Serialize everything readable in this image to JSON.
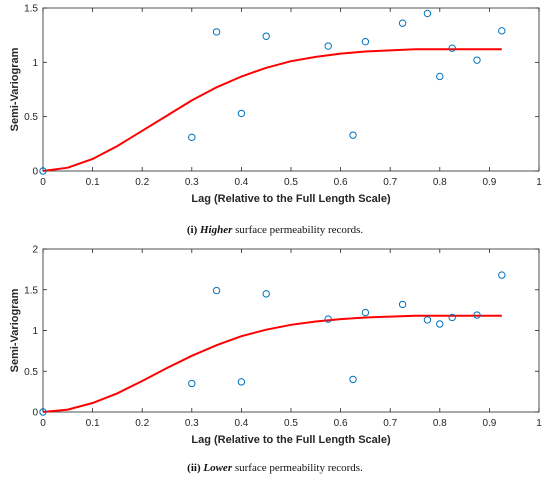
{
  "chart_data": [
    {
      "type": "scatter",
      "xlabel": "Lag (Relative to the Full Length Scale)",
      "ylabel": "Semi-Variogram",
      "xlim": [
        0,
        1
      ],
      "ylim": [
        0,
        1.5
      ],
      "xticks": [
        "0",
        "0.1",
        "0.2",
        "0.3",
        "0.4",
        "0.5",
        "0.6",
        "0.7",
        "0.8",
        "0.9",
        "1"
      ],
      "yticks": [
        "0",
        "0.5",
        "1",
        "1.5"
      ],
      "grid": false,
      "caption": {
        "number": "(i)",
        "emphasis": "Higher",
        "rest": "surface permeability records."
      },
      "series": [
        {
          "kind": "points",
          "color": "#0072BD",
          "x": [
            0.0,
            0.3,
            0.35,
            0.4,
            0.45,
            0.575,
            0.625,
            0.65,
            0.725,
            0.775,
            0.8,
            0.825,
            0.875,
            0.925
          ],
          "y": [
            0.0,
            0.31,
            1.28,
            0.53,
            1.24,
            1.15,
            0.33,
            1.19,
            1.36,
            1.45,
            0.87,
            1.13,
            1.02,
            1.29
          ]
        },
        {
          "kind": "fit",
          "color": "#FF0000",
          "x": [
            0.0,
            0.05,
            0.1,
            0.15,
            0.2,
            0.25,
            0.3,
            0.35,
            0.4,
            0.45,
            0.5,
            0.55,
            0.6,
            0.65,
            0.7,
            0.75,
            0.8,
            0.85,
            0.9,
            0.925
          ],
          "y": [
            0.0,
            0.03,
            0.11,
            0.23,
            0.37,
            0.51,
            0.65,
            0.77,
            0.87,
            0.95,
            1.01,
            1.05,
            1.08,
            1.1,
            1.11,
            1.12,
            1.12,
            1.12,
            1.12,
            1.12
          ]
        }
      ]
    },
    {
      "type": "scatter",
      "xlabel": "Lag (Relative to the Full Length Scale)",
      "ylabel": "Semi-Variogram",
      "xlim": [
        0,
        1
      ],
      "ylim": [
        0,
        2
      ],
      "xticks": [
        "0",
        "0.1",
        "0.2",
        "0.3",
        "0.4",
        "0.5",
        "0.6",
        "0.7",
        "0.8",
        "0.9",
        "1"
      ],
      "yticks": [
        "0",
        "0.5",
        "1",
        "1.5",
        "2"
      ],
      "grid": false,
      "caption": {
        "number": "(ii)",
        "emphasis": "Lower",
        "rest": "surface permeability records."
      },
      "series": [
        {
          "kind": "points",
          "color": "#0072BD",
          "x": [
            0.0,
            0.3,
            0.35,
            0.4,
            0.45,
            0.575,
            0.625,
            0.65,
            0.725,
            0.775,
            0.8,
            0.825,
            0.875,
            0.925
          ],
          "y": [
            0.0,
            0.35,
            1.49,
            0.37,
            1.45,
            1.14,
            0.4,
            1.22,
            1.32,
            1.13,
            1.08,
            1.16,
            1.19,
            1.68
          ]
        },
        {
          "kind": "fit",
          "color": "#FF0000",
          "x": [
            0.0,
            0.05,
            0.1,
            0.15,
            0.2,
            0.25,
            0.3,
            0.35,
            0.4,
            0.45,
            0.5,
            0.55,
            0.6,
            0.65,
            0.7,
            0.75,
            0.8,
            0.85,
            0.9,
            0.925
          ],
          "y": [
            0.0,
            0.03,
            0.11,
            0.23,
            0.38,
            0.54,
            0.69,
            0.82,
            0.93,
            1.01,
            1.07,
            1.11,
            1.14,
            1.16,
            1.17,
            1.18,
            1.18,
            1.18,
            1.18,
            1.18
          ]
        }
      ]
    }
  ]
}
